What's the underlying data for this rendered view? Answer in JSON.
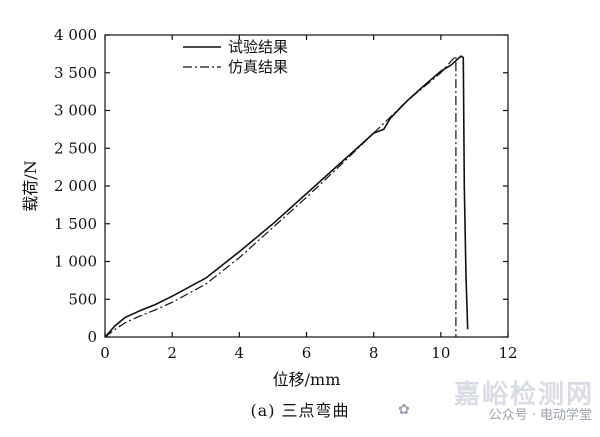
{
  "chart_data": {
    "type": "line",
    "xlabel": "位移/mm",
    "ylabel": "载荷/N",
    "xlim": [
      0,
      12
    ],
    "ylim": [
      0,
      4000
    ],
    "x_ticks": [
      0,
      2,
      4,
      6,
      8,
      10,
      12
    ],
    "y_ticks": [
      0,
      500,
      1000,
      1500,
      2000,
      2500,
      3000,
      3500,
      4000
    ],
    "y_tick_labels": [
      "0",
      "500",
      "1 000",
      "1 500",
      "2 000",
      "2 500",
      "3 000",
      "3 500",
      "4 000"
    ],
    "legend_position": "top-left",
    "series": [
      {
        "name": "试验结果",
        "style": "solid",
        "points": [
          [
            0,
            0
          ],
          [
            0.3,
            150
          ],
          [
            0.6,
            260
          ],
          [
            1.0,
            340
          ],
          [
            1.5,
            430
          ],
          [
            2.0,
            540
          ],
          [
            3.0,
            780
          ],
          [
            4.0,
            1130
          ],
          [
            5.0,
            1500
          ],
          [
            6.0,
            1900
          ],
          [
            7.0,
            2300
          ],
          [
            7.5,
            2500
          ],
          [
            8.0,
            2700
          ],
          [
            8.3,
            2750
          ],
          [
            8.5,
            2900
          ],
          [
            9.0,
            3130
          ],
          [
            9.5,
            3330
          ],
          [
            10.0,
            3520
          ],
          [
            10.3,
            3600
          ],
          [
            10.5,
            3680
          ],
          [
            10.6,
            3720
          ],
          [
            10.67,
            3700
          ],
          [
            10.7,
            2000
          ],
          [
            10.75,
            800
          ],
          [
            10.8,
            100
          ]
        ]
      },
      {
        "name": "仿真结果",
        "style": "dashdot",
        "points": [
          [
            0,
            0
          ],
          [
            0.3,
            100
          ],
          [
            0.6,
            190
          ],
          [
            1.0,
            270
          ],
          [
            1.5,
            360
          ],
          [
            2.0,
            460
          ],
          [
            3.0,
            700
          ],
          [
            4.0,
            1050
          ],
          [
            5.0,
            1450
          ],
          [
            6.0,
            1850
          ],
          [
            7.0,
            2270
          ],
          [
            8.0,
            2700
          ],
          [
            9.0,
            3130
          ],
          [
            10.0,
            3500
          ],
          [
            10.3,
            3650
          ],
          [
            10.45,
            3720
          ],
          [
            10.45,
            0
          ]
        ]
      }
    ]
  },
  "caption": "(a)  三点弯曲",
  "watermark": {
    "main": "嘉峪检测网",
    "sub": "公众号 · 电动学堂"
  }
}
